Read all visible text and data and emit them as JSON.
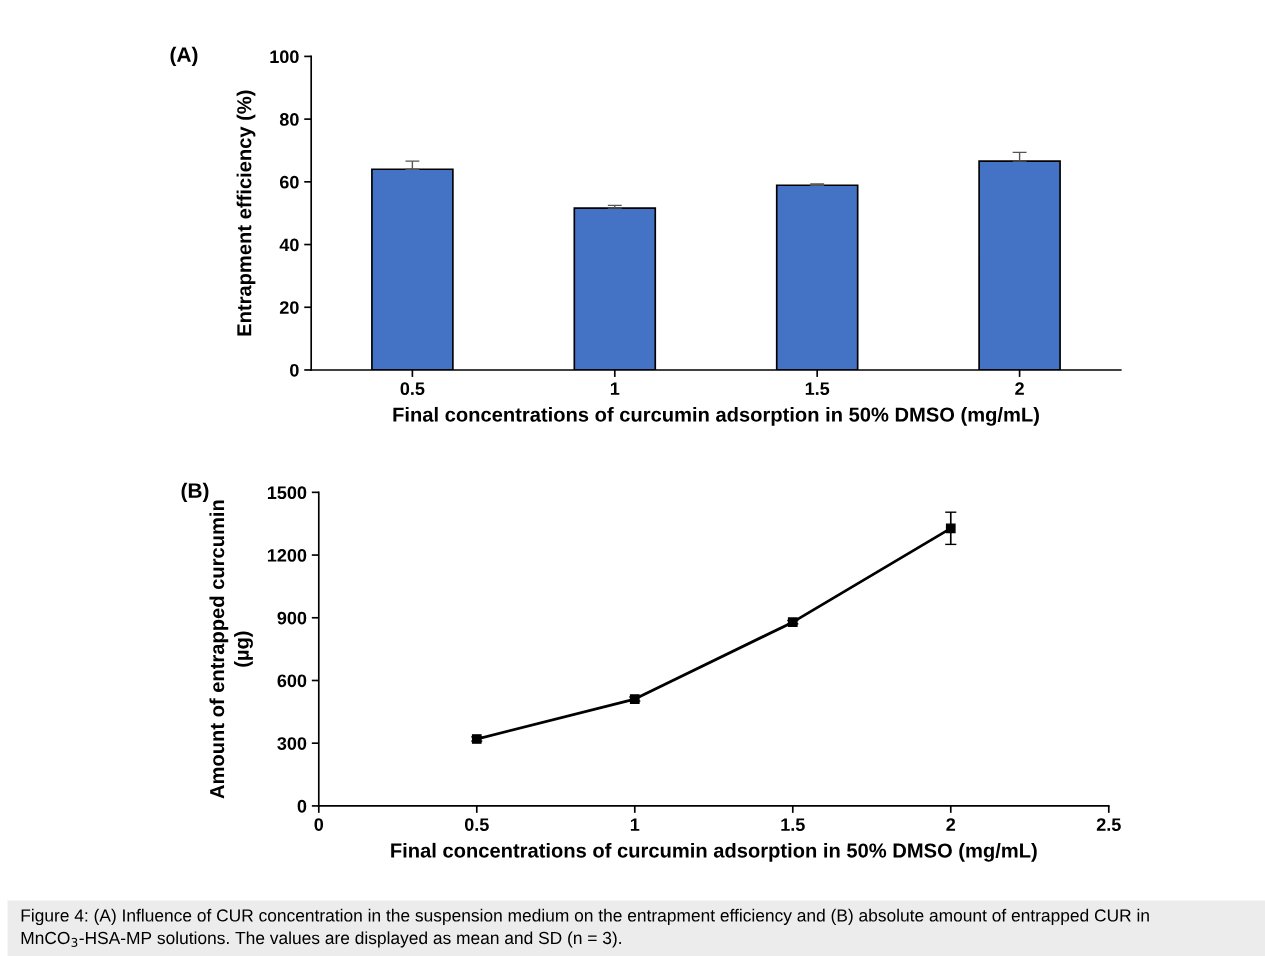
{
  "chart_data": [
    {
      "type": "bar",
      "annotations": [
        "(A)"
      ],
      "xlabel": "Final concentrations of curcumin adsorption in 50% DMSO (mg/mL)",
      "ylabel": "Entrapment efficiency (%)",
      "categories": [
        "0.5",
        "1",
        "1.5",
        "2"
      ],
      "values": [
        64.0,
        51.6,
        58.9,
        66.6
      ],
      "color": "#4472c4",
      "errors": [
        [
          64.0,
          66.6
        ],
        [
          51.6,
          52.5
        ],
        [
          58.9,
          59.3
        ],
        [
          66.6,
          69.4
        ]
      ],
      "ylim": [
        0,
        100
      ],
      "yticks": [
        0,
        20,
        40,
        60,
        80,
        100
      ],
      "grid": false
    },
    {
      "type": "line",
      "annotations": [
        "(B)",
        "Figure 4: (A) Influence of CUR concentration in the suspension medium on the entrapment efficiency and (B) absolute amount of entrapped CUR in MnCO$_{3}$-HSA-MP solutions. The values are displayed as mean and SD (n = 3)."
      ],
      "xlabel": "Final concentrations of curcumin adsorption in 50% DMSO (mg/mL)",
      "ylabel": "Amount of entrapped curcumin\n(µg)",
      "x": [
        0.5,
        1,
        1.5,
        2
      ],
      "values": [
        320,
        511,
        879,
        1328
      ],
      "color": "#000000",
      "errors": [
        10,
        10,
        8,
        77
      ],
      "marker": "square",
      "line_style": "solid",
      "xlim": [
        0,
        2.5
      ],
      "xticks": [
        0,
        0.5,
        1,
        1.5,
        2,
        2.5
      ],
      "ylim": [
        0,
        1500
      ],
      "yticks": [
        0,
        300,
        600,
        900,
        1200,
        1500
      ],
      "grid": false
    }
  ]
}
